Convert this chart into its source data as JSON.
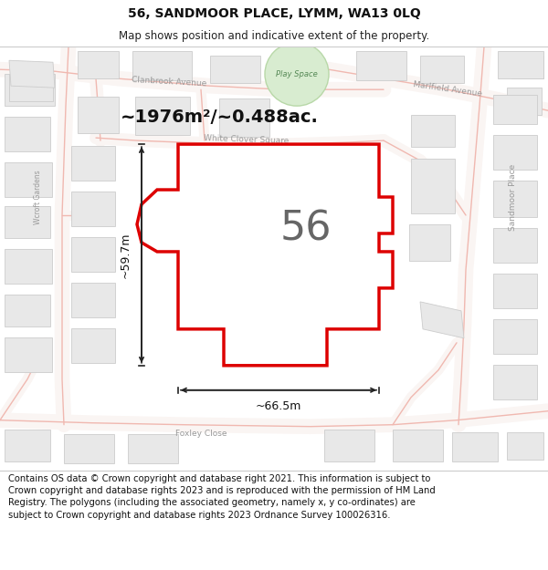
{
  "title_line1": "56, SANDMOOR PLACE, LYMM, WA13 0LQ",
  "title_line2": "Map shows position and indicative extent of the property.",
  "footer_text": "Contains OS data © Crown copyright and database right 2021. This information is subject to Crown copyright and database rights 2023 and is reproduced with the permission of HM Land Registry. The polygons (including the associated geometry, namely x, y co-ordinates) are subject to Crown copyright and database rights 2023 Ordnance Survey 100026316.",
  "area_label": "~1976m²/~0.488ac.",
  "property_number": "56",
  "dim_width": "~66.5m",
  "dim_height": "~59.7m",
  "map_bg": "#ffffff",
  "road_line_color": "#f0b8b0",
  "bldg_fill": "#e8e8e8",
  "bldg_edge": "#cccccc",
  "road_label_color": "#999999",
  "green_fill": "#d8ecd0",
  "green_edge": "#b8d8a8",
  "prop_edge": "#dd0000",
  "prop_lw": 2.5,
  "title_fontsize": 10,
  "subtitle_fontsize": 8.5,
  "footer_fontsize": 7.2,
  "label_fontsize": 6.5
}
